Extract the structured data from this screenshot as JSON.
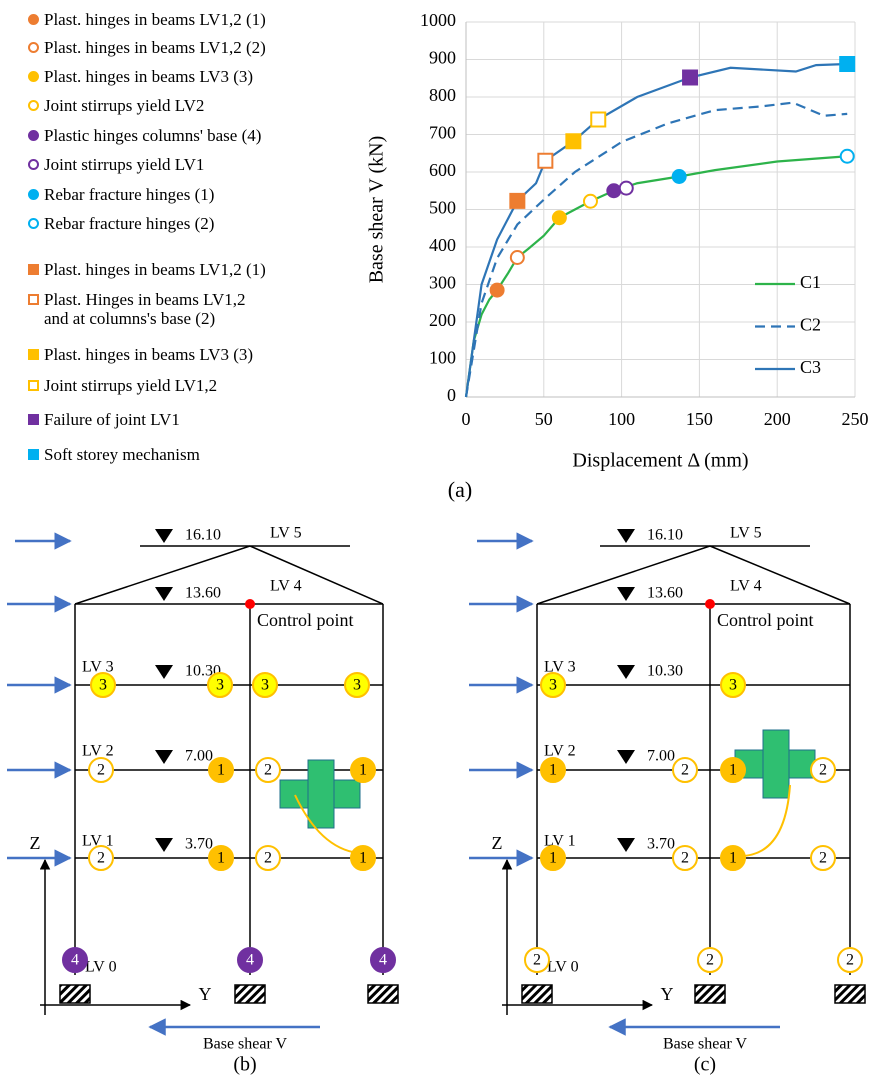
{
  "chart_data": {
    "type": "line",
    "xlabel": "Displacement Δ (mm)",
    "ylabel": "Base shear V (kN)",
    "xlim": [
      0,
      250
    ],
    "xticks": [
      0,
      50,
      100,
      150,
      200,
      250
    ],
    "ylim": [
      0,
      1000
    ],
    "yticks": [
      0,
      100,
      200,
      300,
      400,
      500,
      600,
      700,
      800,
      900,
      1000
    ],
    "grid": true,
    "series": [
      {
        "name": "C1",
        "color": "#2db34a",
        "dash": false,
        "x": [
          0,
          5,
          10,
          15,
          20,
          27,
          33,
          40,
          50,
          60,
          70,
          80,
          95,
          110,
          137,
          160,
          200,
          245
        ],
        "values": [
          0,
          150,
          220,
          260,
          285,
          330,
          372,
          395,
          430,
          478,
          500,
          522,
          550,
          570,
          588,
          605,
          628,
          642
        ]
      },
      {
        "name": "C2",
        "color": "#2e75b6",
        "dash": true,
        "x": [
          0,
          10,
          20,
          33,
          51,
          70,
          100,
          130,
          160,
          190,
          210,
          230,
          245
        ],
        "values": [
          0,
          250,
          370,
          460,
          530,
          600,
          680,
          730,
          765,
          775,
          785,
          750,
          755
        ]
      },
      {
        "name": "C3",
        "color": "#2e75b6",
        "dash": false,
        "x": [
          0,
          10,
          20,
          33,
          45,
          51,
          69,
          85,
          110,
          144,
          170,
          212,
          225,
          245
        ],
        "values": [
          0,
          300,
          420,
          523,
          570,
          630,
          682,
          740,
          800,
          852,
          878,
          868,
          885,
          888
        ]
      }
    ],
    "events": [
      {
        "name": "Plast. hinges in beams LV1,2 (1)",
        "color": "#ed7d31",
        "shape": "circle",
        "filled": true,
        "x": 20,
        "y": 285
      },
      {
        "name": "Plast. hinges in beams LV1,2 (2)",
        "color": "#ed7d31",
        "shape": "circle",
        "filled": false,
        "x": 33,
        "y": 372
      },
      {
        "name": "Plast. hinges in beams LV3 (3)",
        "color": "#ffc000",
        "shape": "circle",
        "filled": true,
        "x": 60,
        "y": 478
      },
      {
        "name": "Joint stirrups yield LV2",
        "color": "#ffc000",
        "shape": "circle",
        "filled": false,
        "x": 80,
        "y": 522
      },
      {
        "name": "Plastic hinges columns' base (4)",
        "color": "#7030a0",
        "shape": "circle",
        "filled": true,
        "x": 95,
        "y": 550
      },
      {
        "name": "Joint stirrups yield LV1",
        "color": "#7030a0",
        "shape": "circle",
        "filled": false,
        "x": 103,
        "y": 557
      },
      {
        "name": "Rebar fracture hinges (1)",
        "color": "#00b0f0",
        "shape": "circle",
        "filled": true,
        "x": 137,
        "y": 588
      },
      {
        "name": "Rebar fracture hinges (2)",
        "color": "#00b0f0",
        "shape": "circle",
        "filled": false,
        "x": 245,
        "y": 642
      },
      {
        "name": "Plast. hinges in beams LV1,2 (1)",
        "color": "#ed7d31",
        "shape": "square",
        "filled": true,
        "x": 33,
        "y": 523
      },
      {
        "name": "Plast. Hinges in beams LV1,2\nand at columns's base (2)",
        "color": "#ed7d31",
        "shape": "square",
        "filled": false,
        "x": 51,
        "y": 630
      },
      {
        "name": "Plast. hinges in beams LV3 (3)",
        "color": "#ffc000",
        "shape": "square",
        "filled": true,
        "x": 69,
        "y": 682
      },
      {
        "name": "Joint stirrups yield LV1,2",
        "color": "#ffc000",
        "shape": "square",
        "filled": false,
        "x": 85,
        "y": 740
      },
      {
        "name": "Failure of joint LV1",
        "color": "#7030a0",
        "shape": "square",
        "filled": true,
        "x": 144,
        "y": 852
      },
      {
        "name": "Soft storey mechanism",
        "color": "#00b0f0",
        "shape": "square",
        "filled": true,
        "x": 245,
        "y": 888
      }
    ],
    "caption": "(a)"
  },
  "frames": [
    {
      "caption": "(b)",
      "levels": [
        "LV 5",
        "LV 4",
        "LV 3",
        "LV 2",
        "LV 1",
        "LV 0"
      ],
      "elevations": [
        "16.10",
        "13.60",
        "10.30",
        "7.00",
        "3.70"
      ],
      "control_point": "Control point",
      "axis_z": "Z",
      "axis_y": "Y",
      "base_shear": "Base shear V",
      "hinges": [
        {
          "label": "3",
          "color": "#ffff00",
          "filled": true
        },
        {
          "label": "3",
          "color": "#ffff00",
          "filled": true
        },
        {
          "label": "3",
          "color": "#ffff00",
          "filled": true
        },
        {
          "label": "3",
          "color": "#ffff00",
          "filled": true
        },
        {
          "label": "2",
          "color": "#ffc000",
          "filled": false
        },
        {
          "label": "1",
          "color": "#ffc000",
          "filled": true
        },
        {
          "label": "2",
          "color": "#ffc000",
          "filled": false
        },
        {
          "label": "1",
          "color": "#ffc000",
          "filled": true
        },
        {
          "label": "2",
          "color": "#ffc000",
          "filled": false
        },
        {
          "label": "1",
          "color": "#ffc000",
          "filled": true
        },
        {
          "label": "2",
          "color": "#ffc000",
          "filled": false
        },
        {
          "label": "1",
          "color": "#ffc000",
          "filled": true
        },
        {
          "label": "4",
          "color": "#7030a0",
          "filled": true
        },
        {
          "label": "4",
          "color": "#7030a0",
          "filled": true
        },
        {
          "label": "4",
          "color": "#7030a0",
          "filled": true
        }
      ]
    },
    {
      "caption": "(c)",
      "levels": [
        "LV 5",
        "LV 4",
        "LV 3",
        "LV 2",
        "LV 1",
        "LV 0"
      ],
      "elevations": [
        "16.10",
        "13.60",
        "10.30",
        "7.00",
        "3.70"
      ],
      "control_point": "Control point",
      "axis_z": "Z",
      "axis_y": "Y",
      "base_shear": "Base shear V",
      "hinges": [
        {
          "label": "3",
          "color": "#ffff00",
          "filled": true
        },
        {
          "label": "3",
          "color": "#ffff00",
          "filled": true
        },
        {
          "label": "1",
          "color": "#ffc000",
          "filled": true
        },
        {
          "label": "2",
          "color": "#ffc000",
          "filled": false
        },
        {
          "label": "1",
          "color": "#ffc000",
          "filled": true
        },
        {
          "label": "2",
          "color": "#ffc000",
          "filled": false
        },
        {
          "label": "1",
          "color": "#ffc000",
          "filled": true
        },
        {
          "label": "2",
          "color": "#ffc000",
          "filled": false
        },
        {
          "label": "1",
          "color": "#ffc000",
          "filled": true
        },
        {
          "label": "2",
          "color": "#ffc000",
          "filled": false
        },
        {
          "label": "2",
          "color": "#ffc000",
          "filled": false
        },
        {
          "label": "2",
          "color": "#ffc000",
          "filled": false
        },
        {
          "label": "2",
          "color": "#ffc000",
          "filled": false
        }
      ]
    }
  ]
}
